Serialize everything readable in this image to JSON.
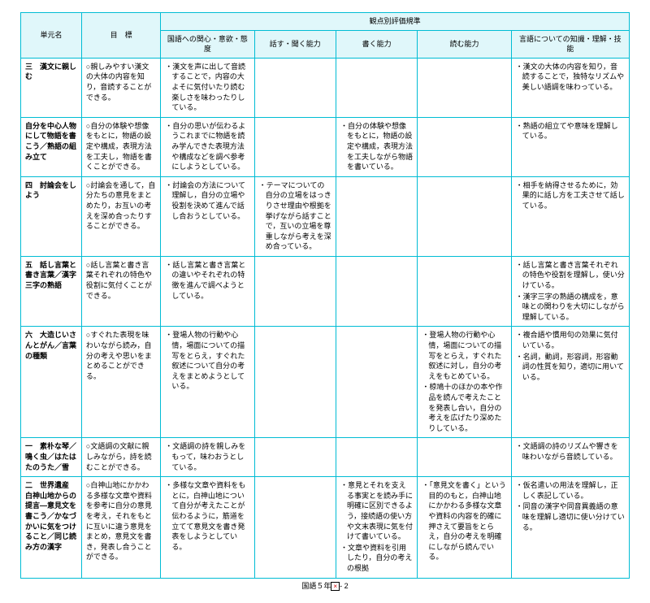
{
  "headers": {
    "unit": "単元名",
    "goal": "目　標",
    "criteria_group": "観点別評価規準",
    "c1": "国語への関心・意欲・態度",
    "c2": "話す・聞く能力",
    "c3": "書く能力",
    "c4": "読む能力",
    "c5": "言語についての知識・理解・技能"
  },
  "rows": [
    {
      "unit": "三　漢文に親しむ",
      "goal": "○親しみやすい漢文の大体の内容を知り，音読することができる。",
      "c1": [
        "・漢文を声に出して音読することで，内容の大よそに気付いたり読む楽しさを味わったりしている。"
      ],
      "c2": [],
      "c3": [],
      "c4": [],
      "c5": [
        "・漢文の大体の内容を知り，音読することで，独特なリズムや美しい語調を味わっている。"
      ]
    },
    {
      "unit": "自分を中心人物にして物語を書こう／熟語の組み立て",
      "goal": "○自分の体験や想像をもとに，物語の設定や構成，表現方法を工夫し，物語を書くことができる。",
      "c1": [
        "・自分の思いが伝わるようこれまでに物語を読み学んできた表現方法や構成などを調べ参考にしようとしている。"
      ],
      "c2": [],
      "c3": [
        "・自分の体験や想像をもとに，物語の設定や構成，表現方法を工夫しながら物語を書いている。"
      ],
      "c4": [],
      "c5": [
        "・熟語の組立てや意味を理解している。"
      ]
    },
    {
      "unit": "四　討論会をしよう",
      "goal": "○討論会を通して，自分たちの意見をまとめたり，お互いの考えを深め合ったりすることができる。",
      "c1": [
        "・討論会の方法について理解し，自分の立場や役割を決めて進んで話し合おうとしている。"
      ],
      "c2": [
        "・テーマについての自分の立場をはっきりさせ理由や根拠を挙げながら話すことで，互いの立場を尊重しながら考えを深め合っている。"
      ],
      "c3": [],
      "c4": [],
      "c5": [
        "・相手を納得させるために，効果的に話し方を工夫させて話している。"
      ]
    },
    {
      "unit": "五　話し言葉と書き言葉／漢字三字の熟語",
      "goal": "○話し言葉と書き言葉それぞれの特色や役割に気付くことができる。",
      "c1": [
        "・話し言葉と書き言葉との違いやそれぞれの特徴を進んで調べようとしている。"
      ],
      "c2": [],
      "c3": [],
      "c4": [],
      "c5": [
        "・話し言葉と書き言葉それぞれの特色や役割を理解し，使い分けている。",
        "・漢字三字の熟語の構成を，意味との関わりを大切にしながら理解している。"
      ]
    },
    {
      "unit": "六　大造じいさんとがん／言葉の種類",
      "goal": "○すぐれた表現を味わいながら読み，自分の考えや思いをまとめることができる。",
      "c1": [
        "・登場人物の行動や心情，場面についての描写をとらえ，すぐれた叙述について自分の考えをまとめようとしている。"
      ],
      "c2": [],
      "c3": [],
      "c4": [
        "・登場人物の行動や心情，場面についての描写をとらえ，すぐれた叙述に対し，自分の考えをもとめている。",
        "・椋鳩十のほかの本や作品を読んで考えたことを発表し合い，自分の考えを広げたり深めたりしている。"
      ],
      "c5": [
        "・複合語や慣用句の効果に気付いている。　",
        "・名詞，動詞，形容詞，形容動詞の性質を知り，適切に用いている。"
      ]
    },
    {
      "unit": "一　素朴な琴／鳴く虫／はたはたのうた／雪",
      "goal": "○文語調の文献に親しみながら，詩を読むことができる。",
      "c1": [
        "・文語調の詩を親しみをもって，味わおうとしている。"
      ],
      "c2": [],
      "c3": [],
      "c4": [],
      "c5": [
        "・文語調の詩のリズムや響きを味わいながら音読している。"
      ]
    },
    {
      "unit": "二　世界遺産　白神山地からの提言—意見文を書こう／かなづかいに気をつけること／同じ読み方の漢字",
      "goal": "○白神山地にかかわる多様な文章や資料を参考に自分の意見を考え，それをもとに互いに違う意見をまとめ，意見文を書き，発表し合うことができる。",
      "c1": [
        "・多様な文章や資料をもとに，白神山地について自分が考えたことが伝わるように，筋道を立てて意見文を書き発表をしようとしている。"
      ],
      "c2": [],
      "c3": [
        "・意見とそれを支える事実とを読み手に明確に区別できるよう，接続語の使い方や文末表現に気を付けて書いている。",
        "・文章や資料を引用したり，自分の考えの根拠"
      ],
      "c4": [
        "・「意見文を書く」という目的のもと，白神山地にかかわる多様な文章や資料の内容を的確に押さえて要旨をとらえ，自分の考えを明確にしながら読んでいる。"
      ],
      "c5": [
        "・仮名遣いの用法を理解し，正しく表記している。",
        "・同音の漢字や同音異義語の意味を理解し適切に使い分けている。"
      ]
    }
  ],
  "footer": {
    "label_pre": "国語５年",
    "label_post": "- 2"
  },
  "colors": {
    "border": "#00bcd4",
    "header_bg": "#e0f7fa"
  }
}
